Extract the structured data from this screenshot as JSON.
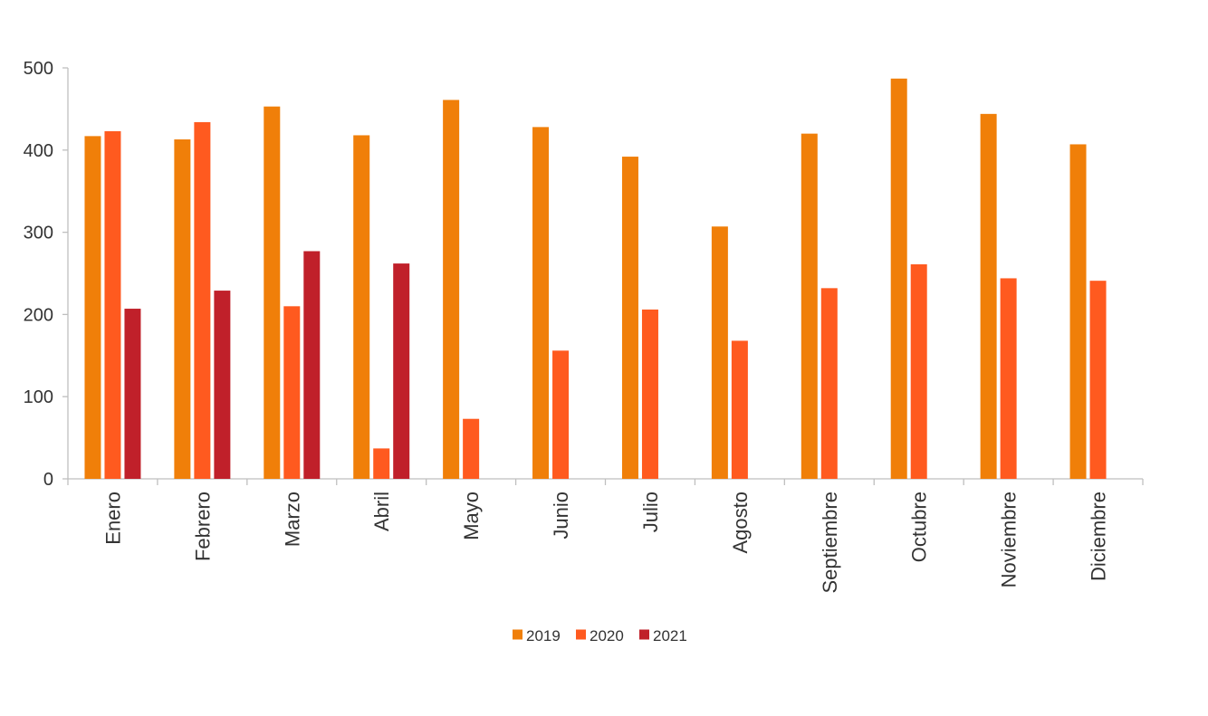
{
  "chart_data": {
    "type": "bar",
    "title": "",
    "xlabel": "",
    "ylabel": "",
    "ylim": [
      0,
      500
    ],
    "yticks": [
      0,
      100,
      200,
      300,
      400,
      500
    ],
    "grid": false,
    "legend_position": "bottom-center",
    "categories": [
      "Enero",
      "Febrero",
      "Marzo",
      "Abril",
      "Mayo",
      "Junio",
      "Julio",
      "Agosto",
      "Septiembre",
      "Octubre",
      "Noviembre",
      "Diciembre"
    ],
    "series": [
      {
        "name": "2019",
        "color": "#F07F09",
        "values": [
          417,
          413,
          453,
          418,
          461,
          428,
          392,
          307,
          420,
          487,
          444,
          407
        ]
      },
      {
        "name": "2020",
        "color": "#FF5A1F",
        "values": [
          423,
          434,
          210,
          37,
          73,
          156,
          206,
          168,
          232,
          261,
          244,
          241
        ]
      },
      {
        "name": "2021",
        "color": "#C0202A",
        "values": [
          207,
          229,
          277,
          262,
          null,
          null,
          null,
          null,
          null,
          null,
          null,
          null
        ]
      }
    ]
  }
}
